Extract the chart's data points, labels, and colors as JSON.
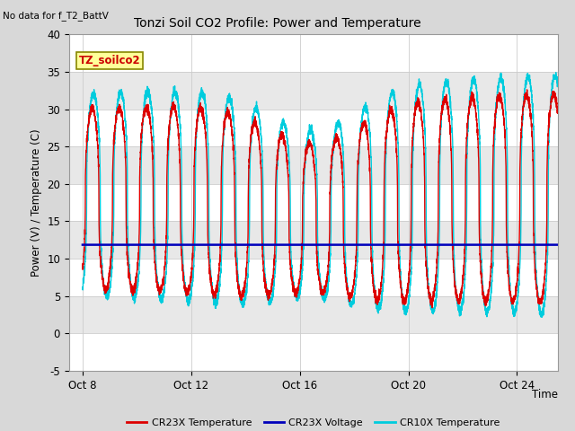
{
  "title": "Tonzi Soil CO2 Profile: Power and Temperature",
  "top_left_text": "No data for f_T2_BattV",
  "ylabel": "Power (V) / Temperature (C)",
  "xlabel": "Time",
  "xlim_days": [
    7.5,
    25.5
  ],
  "ylim": [
    -5,
    40
  ],
  "yticks": [
    -5,
    0,
    5,
    10,
    15,
    20,
    25,
    30,
    35,
    40
  ],
  "xticks_days": [
    8,
    12,
    16,
    20,
    24
  ],
  "xtick_labels": [
    "Oct 8",
    "Oct 12",
    "Oct 16",
    "Oct 20",
    "Oct 24"
  ],
  "background_color": "#d8d8d8",
  "plot_bg_color": "#ffffff",
  "band_color": "#e8e8e8",
  "grid_color": "#cccccc",
  "cr23x_temp_color": "#dd0000",
  "cr23x_volt_color": "#0000bb",
  "cr10x_temp_color": "#00ccdd",
  "voltage_value": 11.85,
  "legend_labels": [
    "CR23X Temperature",
    "CR23X Voltage",
    "CR10X Temperature"
  ],
  "legend_colors": [
    "#dd0000",
    "#0000bb",
    "#00ccdd"
  ],
  "annotation_text": "TZ_soilco2",
  "annotation_bg": "#ffff99",
  "annotation_border": "#888800",
  "figwidth": 6.4,
  "figheight": 4.8,
  "dpi": 100
}
